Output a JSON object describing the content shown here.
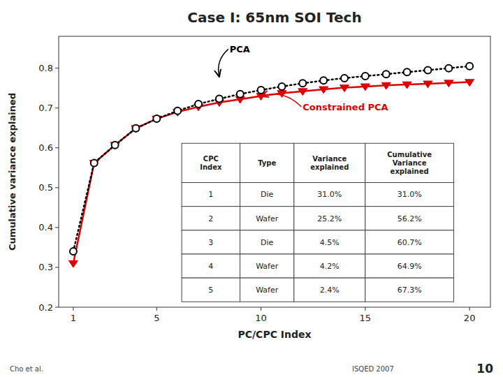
{
  "chart_data": {
    "type": "line",
    "title": "Case I: 65nm SOI Tech",
    "x_label": "PC/CPC Index",
    "y_label": "Cumulative variance explained",
    "xlim": [
      0.3,
      21
    ],
    "ylim": [
      0.2,
      0.88
    ],
    "xticks": [
      1,
      5,
      10,
      15,
      20
    ],
    "yticks": [
      0.2,
      0.3,
      0.4,
      0.5,
      0.6,
      0.7,
      0.8
    ],
    "x": [
      1,
      2,
      3,
      4,
      5,
      6,
      7,
      8,
      9,
      10,
      11,
      12,
      13,
      14,
      15,
      16,
      17,
      18,
      19,
      20
    ],
    "series": [
      {
        "color": "#dd0000",
        "marker": "triangle-down",
        "line_style": "solid",
        "values": [
          0.31,
          0.562,
          0.607,
          0.649,
          0.673,
          0.69,
          0.703,
          0.714,
          0.722,
          0.73,
          0.737,
          0.742,
          0.747,
          0.751,
          0.754,
          0.757,
          0.759,
          0.761,
          0.763,
          0.765
        ]
      },
      {
        "color": "#000000",
        "marker": "circle",
        "line_style": "dotted",
        "values": [
          0.34,
          0.562,
          0.607,
          0.649,
          0.673,
          0.693,
          0.71,
          0.723,
          0.735,
          0.745,
          0.754,
          0.762,
          0.769,
          0.775,
          0.78,
          0.785,
          0.79,
          0.795,
          0.8,
          0.805
        ]
      }
    ],
    "annotations": [
      {
        "text": "PCA",
        "color": "#000000",
        "x": 8,
        "y": 0.778,
        "text_x": 8.5,
        "text_y": 0.84
      },
      {
        "text": "Constrained PCA",
        "color": "#dd0000",
        "x": 10,
        "y": 0.73,
        "text_x": 12.0,
        "text_y": 0.695
      }
    ],
    "table": [
      [
        "CPC\nIndex",
        "Type",
        "Variance\nexplained",
        "Cumulative\nVariance\nexplained"
      ],
      [
        "1",
        "Die",
        "31.0%",
        "31.0%"
      ],
      [
        "2",
        "Wafer",
        "25.2%",
        "56.2%"
      ],
      [
        "3",
        "Die",
        "4.5%",
        "60.7%"
      ],
      [
        "4",
        "Wafer",
        "4.2%",
        "64.9%"
      ],
      [
        "5",
        "Wafer",
        "2.4%",
        "67.3%"
      ]
    ],
    "footer": [
      "Cho et al.",
      "ISQED 2007",
      "10"
    ]
  }
}
